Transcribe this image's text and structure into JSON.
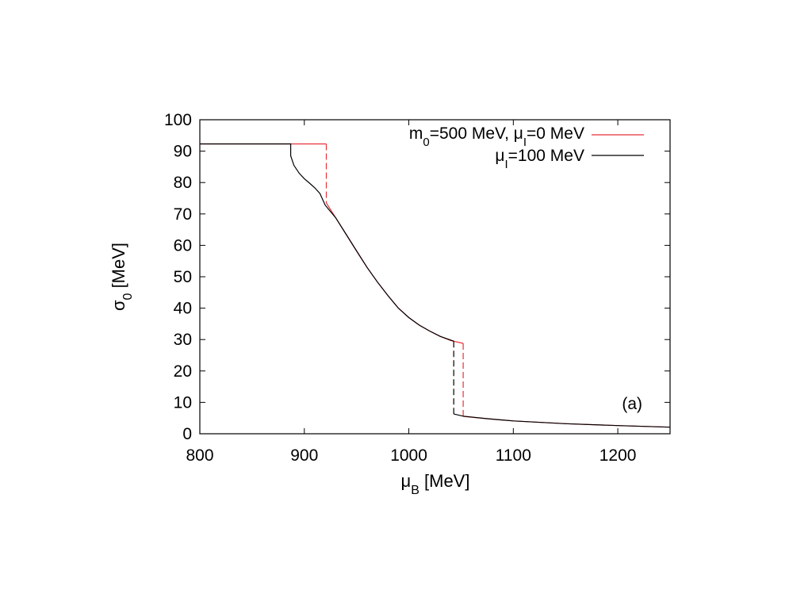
{
  "chart_data": {
    "type": "line",
    "title": "",
    "panel_label": "(a)",
    "xlabel": {
      "symbol": "μ",
      "sub": "B",
      "unit": " [MeV]"
    },
    "ylabel": {
      "symbol": "σ",
      "sub": "0",
      "unit": " [MeV]"
    },
    "xlim": [
      800,
      1250
    ],
    "ylim": [
      0,
      100
    ],
    "xticks": [
      800,
      900,
      1000,
      1100,
      1200
    ],
    "yticks": [
      0,
      10,
      20,
      30,
      40,
      50,
      60,
      70,
      80,
      90,
      100
    ],
    "legend_position": "top-right",
    "colors": {
      "red": "#e8303a",
      "black": "#000000"
    },
    "series": [
      {
        "name": "m0=500 MeV, μI=0 MeV",
        "legend": {
          "p1": "m",
          "s1": "0",
          "p2": "=500 MeV, μ",
          "s2": "I",
          "p3": "=0 MeV"
        },
        "color": "#e8303a",
        "segments": [
          {
            "dashed": false,
            "points": [
              [
                800,
                92.3
              ],
              [
                921,
                92.3
              ]
            ]
          },
          {
            "dashed": true,
            "points": [
              [
                921,
                92.3
              ],
              [
                921,
                73.5
              ]
            ]
          },
          {
            "dashed": false,
            "points": [
              [
                921,
                73.5
              ],
              [
                930,
                68.8
              ],
              [
                940,
                63.5
              ],
              [
                950,
                58.2
              ],
              [
                960,
                53.0
              ],
              [
                970,
                48.3
              ],
              [
                980,
                44.0
              ],
              [
                990,
                40.0
              ],
              [
                1000,
                37.0
              ],
              [
                1010,
                34.6
              ],
              [
                1020,
                32.7
              ],
              [
                1030,
                31.0
              ],
              [
                1040,
                29.7
              ],
              [
                1052,
                28.8
              ]
            ]
          },
          {
            "dashed": true,
            "points": [
              [
                1052,
                28.8
              ],
              [
                1052,
                5.5
              ]
            ]
          },
          {
            "dashed": false,
            "points": [
              [
                1052,
                5.5
              ],
              [
                1075,
                4.8
              ],
              [
                1100,
                4.1
              ],
              [
                1150,
                3.2
              ],
              [
                1200,
                2.6
              ],
              [
                1250,
                2.1
              ]
            ]
          }
        ]
      },
      {
        "name": "μI=100 MeV",
        "legend": {
          "p1": "",
          "s1": "",
          "p2": "μ",
          "s2": "I",
          "p3": "=100 MeV"
        },
        "color": "#000000",
        "segments": [
          {
            "dashed": false,
            "points": [
              [
                800,
                92.3
              ],
              [
                887,
                92.3
              ],
              [
                887,
                88.5
              ],
              [
                890,
                85.5
              ],
              [
                895,
                83.0
              ],
              [
                900,
                81.2
              ],
              [
                905,
                79.8
              ],
              [
                910,
                78.3
              ],
              [
                915,
                76.5
              ],
              [
                920,
                72.8
              ],
              [
                930,
                68.8
              ],
              [
                940,
                63.5
              ],
              [
                950,
                58.2
              ],
              [
                960,
                53.0
              ],
              [
                970,
                48.3
              ],
              [
                980,
                44.0
              ],
              [
                990,
                40.0
              ],
              [
                1000,
                37.0
              ],
              [
                1010,
                34.6
              ],
              [
                1020,
                32.7
              ],
              [
                1030,
                31.0
              ],
              [
                1043,
                29.5
              ]
            ]
          },
          {
            "dashed": true,
            "points": [
              [
                1043,
                29.5
              ],
              [
                1043,
                6.3
              ]
            ]
          },
          {
            "dashed": false,
            "points": [
              [
                1043,
                6.3
              ],
              [
                1052,
                5.6
              ],
              [
                1075,
                4.8
              ],
              [
                1100,
                4.1
              ],
              [
                1150,
                3.2
              ],
              [
                1200,
                2.6
              ],
              [
                1250,
                2.1
              ]
            ]
          }
        ]
      }
    ]
  }
}
